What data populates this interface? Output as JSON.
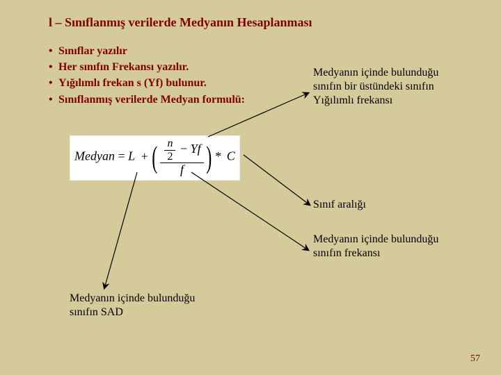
{
  "title": "l – Sınıflanmış verilerde Medyanın Hesaplanması",
  "bullets": [
    "Sınıflar yazılır",
    "Her sınıfın Frekansı yazılır.",
    "Yığılımlı frekan s (Yf) bulunur.",
    "Sınıflanmış verilerde Medyan  formulü:"
  ],
  "annotations": {
    "topRight": "Medyanın içinde bulunduğu sınıfın bir üstündeki sınıfın Yığılımlı frekansı",
    "sinifAraligi": "Sınıf aralığı",
    "midRight": "Medyanın içinde bulunduğu sınıfın frekansı",
    "bottomLeft": "Medyanın içinde bulunduğu sınıfın SAD"
  },
  "formula": {
    "lhs": "Medyan",
    "L": "L",
    "plus": "+",
    "n": "n",
    "two": "2",
    "Yf": "Yf",
    "f": "f",
    "star": "*",
    "C": "C"
  },
  "pageNumber": "57",
  "arrows": {
    "stroke": "#000000",
    "strokeWidth": 1.2,
    "paths": [
      "M299,197 L443,134",
      "M350,223 L445,295",
      "M275,248 L443,360",
      "M197,248 L150,415"
    ]
  }
}
